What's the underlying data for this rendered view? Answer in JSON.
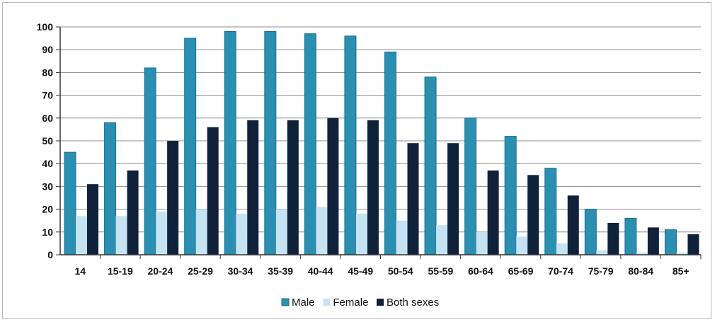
{
  "chart_data": {
    "type": "bar",
    "title": "",
    "xlabel": "",
    "ylabel": "",
    "ylim": [
      0,
      100
    ],
    "yticks": [
      0,
      10,
      20,
      30,
      40,
      50,
      60,
      70,
      80,
      90,
      100
    ],
    "grid": true,
    "legend_position": "bottom",
    "categories": [
      "14",
      "15-19",
      "20-24",
      "25-29",
      "30-34",
      "35-39",
      "40-44",
      "45-49",
      "50-54",
      "55-59",
      "60-64",
      "65-69",
      "70-74",
      "75-79",
      "80-84",
      "85+"
    ],
    "series": [
      {
        "name": "Male",
        "color": "#2a8fb0",
        "values": [
          45,
          58,
          82,
          95,
          98,
          98,
          97,
          96,
          89,
          78,
          60,
          52,
          38,
          20,
          16,
          11
        ]
      },
      {
        "name": "Female",
        "color": "#c6e3f3",
        "values": [
          17,
          17,
          19,
          20,
          18,
          20,
          21,
          18,
          15,
          13,
          10,
          8,
          5,
          2,
          1,
          1
        ]
      },
      {
        "name": "Both sexes",
        "color": "#10223a",
        "values": [
          31,
          37,
          50,
          56,
          59,
          59,
          60,
          59,
          49,
          49,
          37,
          35,
          26,
          14,
          12,
          9
        ]
      }
    ]
  }
}
